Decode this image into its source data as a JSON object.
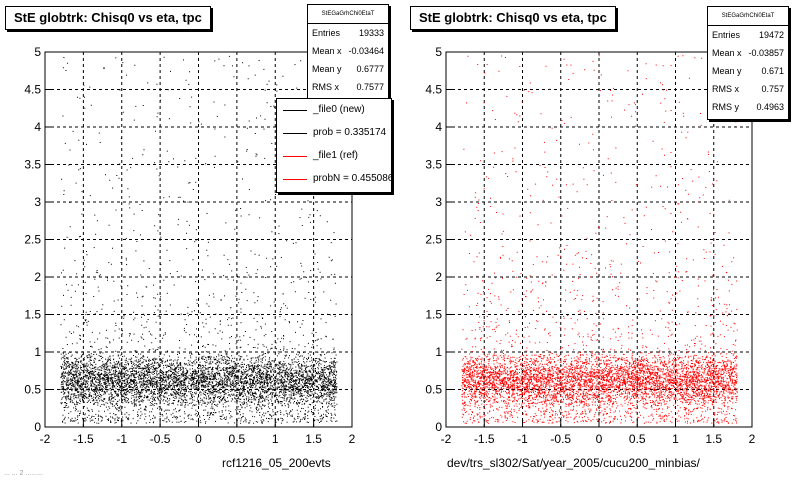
{
  "stamp": "... ... 2 .........",
  "chart_data": [
    {
      "type": "scatter",
      "title": "StE globtrk: Chisq0 vs eta, tpc",
      "xlabel": "rcf1216_05_200evts",
      "ylabel": "",
      "xlim": [
        -2,
        2
      ],
      "ylim": [
        0,
        5
      ],
      "x_ticks": [
        "-2",
        "-1.5",
        "-1",
        "-0.5",
        "0",
        "0.5",
        "1",
        "1.5",
        "2"
      ],
      "y_ticks": [
        "0",
        "0.5",
        "1",
        "1.5",
        "2",
        "2.5",
        "3",
        "3.5",
        "4",
        "4.5",
        "5"
      ],
      "grid": true,
      "marker_color": "#000000",
      "x_range": [
        -1.8,
        1.8
      ],
      "y_mode": 0.5,
      "dense_band": [
        0.25,
        1.0
      ],
      "stats": {
        "name": "StEGaGrhChi0EtaT",
        "entries_label": "Entries",
        "entries": "19333",
        "meanx_label": "Mean x",
        "meanx": "-0.03464",
        "meany_label": "Mean y",
        "meany": "0.6777",
        "rmsx_label": "RMS x",
        "rmsx": "0.7577"
      },
      "legend": {
        "placement": "top-right",
        "entries": [
          {
            "label": "_file0 (new)",
            "color": "#000000"
          },
          {
            "label": "prob = 0.335174",
            "color": "#000000"
          },
          {
            "label": "_file1 (ref)",
            "color": "#ff0000"
          },
          {
            "label": "probN = 0.455086",
            "color": "#ff0000"
          }
        ]
      }
    },
    {
      "type": "scatter",
      "title": "StE globtrk: Chisq0 vs eta, tpc",
      "xlabel": "dev/trs_sl302/Sat/year_2005/cucu200_minbias/",
      "ylabel": "",
      "xlim": [
        -2,
        2
      ],
      "ylim": [
        0,
        5
      ],
      "x_ticks": [
        "-2",
        "-1.5",
        "-1",
        "-0.5",
        "0",
        "0.5",
        "1",
        "1.5",
        "2"
      ],
      "y_ticks": [
        "0",
        "0.5",
        "1",
        "1.5",
        "2",
        "2.5",
        "3",
        "3.5",
        "4",
        "4.5",
        "5"
      ],
      "grid": true,
      "marker_color": "#ff0000",
      "x_range": [
        -1.8,
        1.8
      ],
      "y_mode": 0.5,
      "dense_band": [
        0.25,
        1.0
      ],
      "stats": {
        "name": "StEGaGrhChi0EtaT",
        "entries_label": "Entries",
        "entries": "19472",
        "meanx_label": "Mean x",
        "meanx": "-0.03857",
        "meany_label": "Mean y",
        "meany": "0.671",
        "rmsx_label": "RMS x",
        "rmsx": "0.757",
        "rmsy_label": "RMS y",
        "rmsy": "0.4963"
      }
    }
  ]
}
